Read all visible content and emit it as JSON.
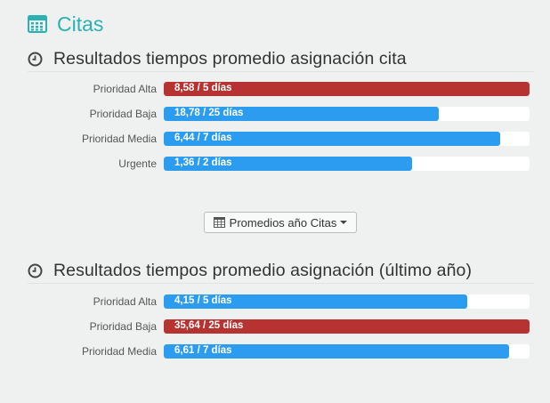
{
  "header": {
    "title": "Citas",
    "icon": "calendar-icon",
    "accent": "#2ab1b1"
  },
  "section1": {
    "title": "Resultados tiempos promedio asignación cita",
    "icon": "clock-icon",
    "rows": [
      {
        "label": "Prioridad Alta",
        "text": "8,58 / 5 días",
        "fill_fraction": 1.0,
        "color": "#b73331"
      },
      {
        "label": "Prioridad Baja",
        "text": "18,78 / 25 días",
        "fill_fraction": 0.751,
        "color": "#2b9cf0"
      },
      {
        "label": "Prioridad Media",
        "text": "6,44 / 7 días",
        "fill_fraction": 0.92,
        "color": "#2b9cf0"
      },
      {
        "label": "Urgente",
        "text": "1,36 / 2 días",
        "fill_fraction": 0.68,
        "color": "#2b9cf0"
      }
    ]
  },
  "dropdown": {
    "label": "Promedios año Citas",
    "icon": "table-icon"
  },
  "section2": {
    "title": "Resultados tiempos promedio asignación (último año)",
    "icon": "clock-icon",
    "rows": [
      {
        "label": "Prioridad Alta",
        "text": "4,15 / 5 días",
        "fill_fraction": 0.83,
        "color": "#2b9cf0"
      },
      {
        "label": "Prioridad Baja",
        "text": "35,64 / 25 días",
        "fill_fraction": 1.0,
        "color": "#b73331"
      },
      {
        "label": "Prioridad Media",
        "text": "6,61 / 7 días",
        "fill_fraction": 0.944,
        "color": "#2b9cf0"
      }
    ]
  }
}
